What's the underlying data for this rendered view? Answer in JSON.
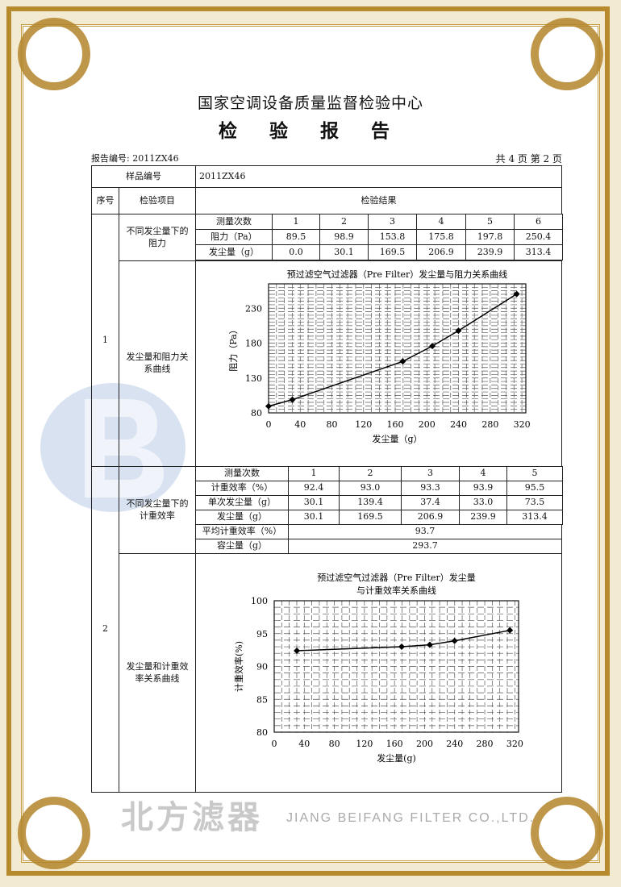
{
  "header": {
    "org": "国家空调设备质量监督检验中心",
    "title": "检 验 报 告",
    "report_no": "报告编号: 2011ZX46",
    "page": "共 4 页 第 2 页"
  },
  "table": {
    "sample_label": "样品编号",
    "sample_value": "2011ZX46",
    "col_seq": "序号",
    "col_item": "检验项目",
    "col_result": "检验结果",
    "section1": {
      "seq": "1",
      "item_a": "不同发尘量下的阻力",
      "item_b": "发尘量和阻力关系曲线",
      "rows": [
        {
          "label": "测量次数",
          "values": [
            "1",
            "2",
            "3",
            "4",
            "5",
            "6"
          ]
        },
        {
          "label": "阻力（Pa）",
          "values": [
            "89.5",
            "98.9",
            "153.8",
            "175.8",
            "197.8",
            "250.4"
          ]
        },
        {
          "label": "发尘量（g）",
          "values": [
            "0.0",
            "30.1",
            "169.5",
            "206.9",
            "239.9",
            "313.4"
          ]
        }
      ]
    },
    "section2": {
      "seq": "2",
      "item_a": "不同发尘量下的计重效率",
      "item_b": "发尘量和计重效率关系曲线",
      "rows": [
        {
          "label": "测量次数",
          "values": [
            "1",
            "2",
            "3",
            "4",
            "5"
          ]
        },
        {
          "label": "计重效率（%）",
          "values": [
            "92.4",
            "93.0",
            "93.3",
            "93.9",
            "95.5"
          ]
        },
        {
          "label": "单次发尘量（g）",
          "values": [
            "30.1",
            "139.4",
            "37.4",
            "33.0",
            "73.5"
          ]
        },
        {
          "label": "发尘量（g）",
          "values": [
            "30.1",
            "169.5",
            "206.9",
            "239.9",
            "313.4"
          ]
        }
      ],
      "avg_label": "平均计重效率（%）",
      "avg_value": "93.7",
      "capacity_label": "容尘量（g）",
      "capacity_value": "293.7"
    }
  },
  "watermark": {
    "logo_text": "北方滤器",
    "english": "JIANG BEIFANG FILTER CO.,LTD."
  },
  "colors": {
    "border_gold": "#b88a2e",
    "watermark_blue": "#9fb6dc",
    "watermark_gray": "#c9c9c9"
  },
  "chart_data": [
    {
      "type": "line",
      "title": "预过滤空气过滤器（Pre Filter）发尘量与阻力关系曲线",
      "xlabel": "发尘量（g）",
      "ylabel": "阻力（Pa）",
      "x": [
        0.0,
        30.1,
        169.5,
        206.9,
        239.9,
        313.4
      ],
      "y": [
        89.5,
        98.9,
        153.8,
        175.8,
        197.8,
        250.4
      ],
      "xticks": [
        "0",
        "40",
        "80",
        "120",
        "160",
        "200",
        "240",
        "280",
        "320"
      ],
      "yticks": [
        "80",
        "130",
        "180",
        "230"
      ],
      "xlim": [
        0,
        325
      ],
      "ylim": [
        80,
        265
      ],
      "grid": true
    },
    {
      "type": "line",
      "title": "预过滤空气过滤器（Pre Filter）发尘量",
      "subtitle": "与计重效率关系曲线",
      "xlabel": "发尘量(g)",
      "ylabel": "计重效率(%)",
      "x": [
        30.1,
        169.5,
        206.9,
        239.9,
        313.4
      ],
      "y": [
        92.4,
        93.0,
        93.3,
        93.9,
        95.5
      ],
      "xticks": [
        "0",
        "40",
        "80",
        "120",
        "160",
        "200",
        "240",
        "280",
        "320"
      ],
      "yticks": [
        "80",
        "85",
        "90",
        "95",
        "100"
      ],
      "xlim": [
        0,
        325
      ],
      "ylim": [
        80,
        100
      ],
      "grid": true
    }
  ]
}
